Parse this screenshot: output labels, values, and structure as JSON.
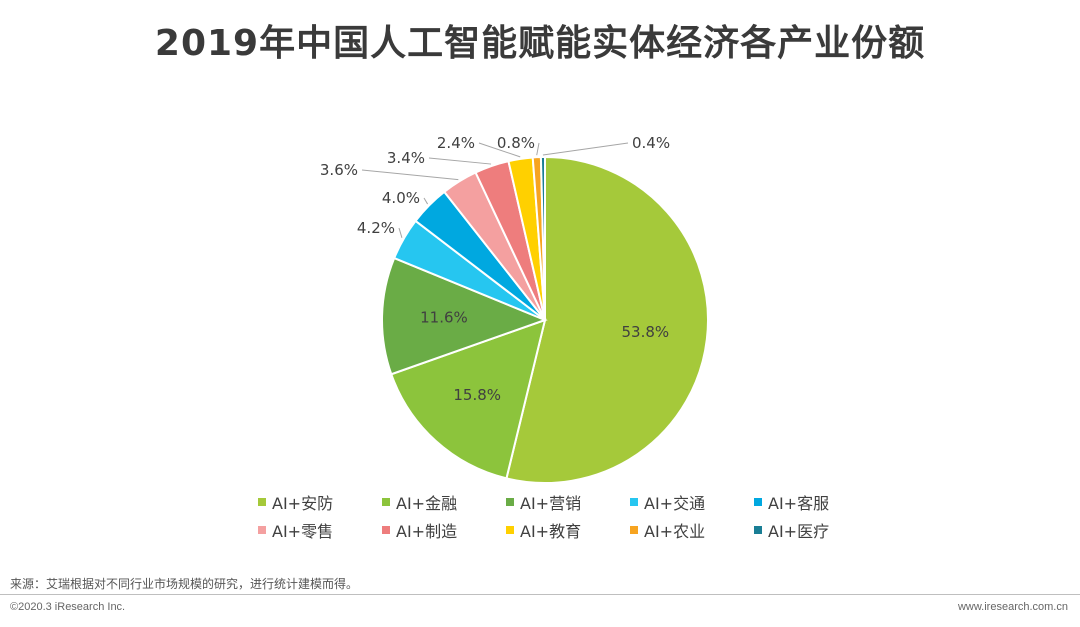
{
  "page": {
    "title": "2019年中国人工智能赋能实体经济各产业份额",
    "source": "来源：艾瑞根据对不同行业市场规模的研究，进行统计建模而得。",
    "copyright": "©2020.3 iResearch Inc.",
    "website": "www.iresearch.com.cn"
  },
  "chart_data": {
    "type": "pie",
    "title": "2019年中国人工智能赋能实体经济各产业份额",
    "unit": "%",
    "legend_placement": "bottom",
    "slices": [
      {
        "name": "AI+安防",
        "value": 53.8,
        "label": "53.8%",
        "color": "#a5c93a"
      },
      {
        "name": "AI+金融",
        "value": 15.8,
        "label": "15.8%",
        "color": "#8cc43c"
      },
      {
        "name": "AI+营销",
        "value": 11.6,
        "label": "11.6%",
        "color": "#6aac46"
      },
      {
        "name": "AI+交通",
        "value": 4.2,
        "label": "4.2%",
        "color": "#26c6f0"
      },
      {
        "name": "AI+客服",
        "value": 4.0,
        "label": "4.0%",
        "color": "#00a8e0"
      },
      {
        "name": "AI+零售",
        "value": 3.6,
        "label": "3.6%",
        "color": "#f4a0a0"
      },
      {
        "name": "AI+制造",
        "value": 3.4,
        "label": "3.4%",
        "color": "#ee7d7d"
      },
      {
        "name": "AI+教育",
        "value": 2.4,
        "label": "2.4%",
        "color": "#ffd000"
      },
      {
        "name": "AI+农业",
        "value": 0.8,
        "label": "0.8%",
        "color": "#f7a420"
      },
      {
        "name": "AI+医疗",
        "value": 0.4,
        "label": "0.4%",
        "color": "#1a7e95"
      }
    ]
  }
}
